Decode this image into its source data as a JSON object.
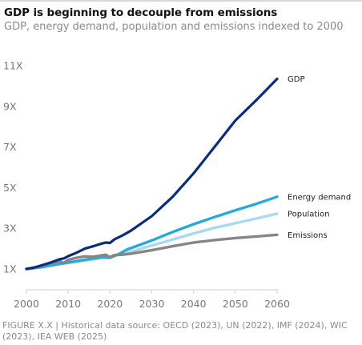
{
  "title": "GDP is beginning to decouple from emissions",
  "subtitle": "GDP, energy demand, population and emissions indexed to 2000",
  "footer": "FIGURE X.X | Historical data source: OECD (2023), UN (2022), IMF (2024), WIC (2023), IEA WEB (2025)",
  "chart_data": {
    "type": "line",
    "title": "GDP is beginning to decouple from emissions",
    "subtitle": "GDP, energy demand, population and emissions indexed to 2000",
    "xlabel": "",
    "ylabel": "",
    "xlim": [
      2000,
      2060
    ],
    "ylim": [
      0.5,
      11.5
    ],
    "x_ticks": [
      2000,
      2010,
      2020,
      2030,
      2040,
      2050,
      2060
    ],
    "x_tick_labels": [
      "2000",
      "2010",
      "2020",
      "2030",
      "2040",
      "2050",
      "2060"
    ],
    "y_ticks": [
      1,
      3,
      5,
      7,
      9,
      11
    ],
    "y_tick_labels": [
      "1X",
      "3X",
      "5X",
      "7X",
      "9X",
      "11X"
    ],
    "grid": false,
    "legend": "inline labels at right end of lines",
    "series": [
      {
        "name": "GDP",
        "color": "#0a2d7a",
        "points": [
          [
            2000,
            1.0
          ],
          [
            2002,
            1.08
          ],
          [
            2004,
            1.2
          ],
          [
            2006,
            1.33
          ],
          [
            2008,
            1.48
          ],
          [
            2009,
            1.52
          ],
          [
            2010,
            1.63
          ],
          [
            2012,
            1.8
          ],
          [
            2014,
            2.0
          ],
          [
            2016,
            2.12
          ],
          [
            2018,
            2.25
          ],
          [
            2019,
            2.3
          ],
          [
            2020,
            2.28
          ],
          [
            2021,
            2.45
          ],
          [
            2023,
            2.65
          ],
          [
            2025,
            2.88
          ],
          [
            2030,
            3.6
          ],
          [
            2035,
            4.55
          ],
          [
            2040,
            5.7
          ],
          [
            2045,
            7.0
          ],
          [
            2050,
            8.3
          ],
          [
            2055,
            9.3
          ],
          [
            2060,
            10.35
          ]
        ]
      },
      {
        "name": "Energy demand",
        "color": "#2aa8d8",
        "points": [
          [
            2000,
            1.0
          ],
          [
            2004,
            1.1
          ],
          [
            2008,
            1.25
          ],
          [
            2010,
            1.32
          ],
          [
            2014,
            1.45
          ],
          [
            2018,
            1.58
          ],
          [
            2020,
            1.55
          ],
          [
            2022,
            1.72
          ],
          [
            2024,
            1.95
          ],
          [
            2026,
            2.1
          ],
          [
            2030,
            2.4
          ],
          [
            2035,
            2.82
          ],
          [
            2040,
            3.2
          ],
          [
            2045,
            3.55
          ],
          [
            2050,
            3.88
          ],
          [
            2055,
            4.2
          ],
          [
            2060,
            4.55
          ]
        ]
      },
      {
        "name": "Population",
        "color": "#a9d8ef",
        "points": [
          [
            2000,
            1.0
          ],
          [
            2005,
            1.15
          ],
          [
            2010,
            1.3
          ],
          [
            2015,
            1.45
          ],
          [
            2020,
            1.6
          ],
          [
            2025,
            1.85
          ],
          [
            2030,
            2.15
          ],
          [
            2035,
            2.45
          ],
          [
            2040,
            2.75
          ],
          [
            2045,
            3.02
          ],
          [
            2050,
            3.25
          ],
          [
            2055,
            3.48
          ],
          [
            2060,
            3.72
          ]
        ]
      },
      {
        "name": "Emissions",
        "color": "#8a8483",
        "points": [
          [
            2000,
            1.0
          ],
          [
            2002,
            1.05
          ],
          [
            2004,
            1.18
          ],
          [
            2006,
            1.3
          ],
          [
            2008,
            1.38
          ],
          [
            2009,
            1.3
          ],
          [
            2010,
            1.45
          ],
          [
            2012,
            1.55
          ],
          [
            2014,
            1.62
          ],
          [
            2016,
            1.6
          ],
          [
            2018,
            1.67
          ],
          [
            2019,
            1.7
          ],
          [
            2020,
            1.58
          ],
          [
            2021,
            1.68
          ],
          [
            2023,
            1.7
          ],
          [
            2025,
            1.75
          ],
          [
            2030,
            1.92
          ],
          [
            2035,
            2.12
          ],
          [
            2040,
            2.3
          ],
          [
            2045,
            2.42
          ],
          [
            2050,
            2.52
          ],
          [
            2055,
            2.6
          ],
          [
            2060,
            2.68
          ]
        ]
      }
    ]
  }
}
